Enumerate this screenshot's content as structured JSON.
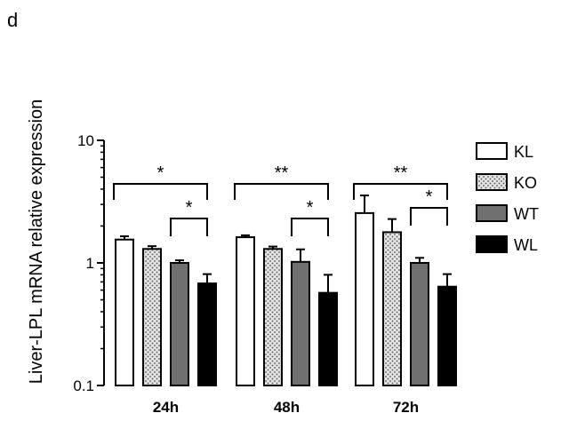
{
  "panel_label": "d",
  "chart_data": {
    "type": "bar",
    "ylabel": "Liver-LPL mRNA relative expression",
    "xlabel": "",
    "yscale": "log",
    "ylim": [
      0.1,
      10
    ],
    "yticks": [
      0.1,
      1,
      10
    ],
    "ytick_labels": [
      "0.1",
      "1",
      "10"
    ],
    "categories": [
      "24h",
      "48h",
      "72h"
    ],
    "series": [
      {
        "name": "KL",
        "values": [
          1.55,
          1.62,
          2.55
        ],
        "errors": [
          0.1,
          0.06,
          1.0
        ],
        "fill": "#ffffff"
      },
      {
        "name": "KO",
        "values": [
          1.3,
          1.3,
          1.78
        ],
        "errors": [
          0.07,
          0.06,
          0.5
        ],
        "fill": "#d9d9d9",
        "pattern": "dots"
      },
      {
        "name": "WT",
        "values": [
          1.0,
          1.02,
          1.0
        ],
        "errors": [
          0.05,
          0.27,
          0.1
        ],
        "fill": "#707070"
      },
      {
        "name": "WL",
        "values": [
          0.68,
          0.57,
          0.64
        ],
        "errors": [
          0.13,
          0.23,
          0.17
        ],
        "fill": "#000000"
      }
    ],
    "significance": [
      {
        "group": 0,
        "from": 0,
        "to": 3,
        "label": "*"
      },
      {
        "group": 0,
        "from": 2,
        "to": 3,
        "label": "*"
      },
      {
        "group": 1,
        "from": 0,
        "to": 3,
        "label": "**"
      },
      {
        "group": 1,
        "from": 2,
        "to": 3,
        "label": "*"
      },
      {
        "group": 2,
        "from": 0,
        "to": 3,
        "label": "**"
      },
      {
        "group": 2,
        "from": 2,
        "to": 3,
        "label": "*"
      }
    ],
    "legend_position": "right"
  }
}
